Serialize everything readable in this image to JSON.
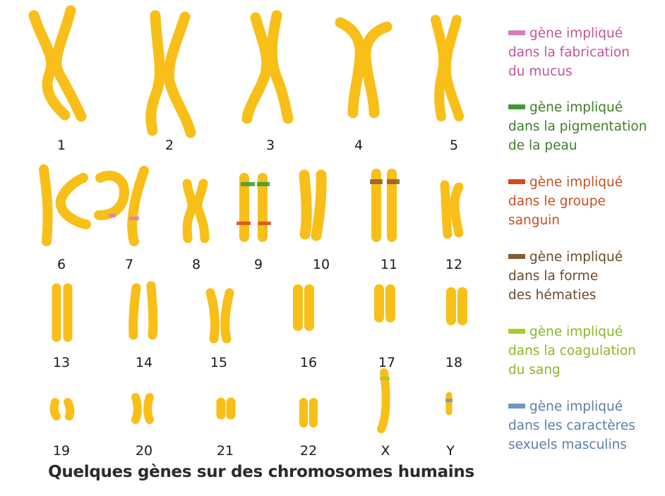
{
  "caption": "Quelques gènes sur des chromosomes humains",
  "chromosome_labels": [
    "1",
    "2",
    "3",
    "4",
    "5",
    "6",
    "7",
    "8",
    "9",
    "10",
    "11",
    "12",
    "13",
    "14",
    "15",
    "16",
    "17",
    "18",
    "19",
    "20",
    "21",
    "22",
    "X",
    "Y"
  ],
  "legend": [
    {
      "lines": [
        "gène impliqué",
        "dans la fabrication",
        "du mucus"
      ],
      "color": "#c0559a",
      "swatch": "#d77cc0"
    },
    {
      "lines": [
        "gène impliqué",
        "dans la pigmentation",
        "de la peau"
      ],
      "color": "#3f7f2a",
      "swatch": "#3f9a34"
    },
    {
      "lines": [
        "gène impliqué",
        "dans le groupe",
        "sanguin"
      ],
      "color": "#c7501d",
      "swatch": "#d44a1a"
    },
    {
      "lines": [
        "gène impliqué",
        "dans la forme",
        "des hématies"
      ],
      "color": "#6b4a2a",
      "swatch": "#8a5a30"
    },
    {
      "lines": [
        "gène impliqué",
        "dans la coagulation",
        "du sang"
      ],
      "color": "#8fb52a",
      "swatch": "#a7cc2c"
    },
    {
      "lines": [
        "gène impliqué",
        "dans les caractères",
        "sexuels masculins"
      ],
      "color": "#5a7fa8",
      "swatch": "#6f95c6"
    }
  ],
  "colors": {
    "chromosome": "#f7bf18",
    "chromosome_edge": "#e09a05"
  }
}
